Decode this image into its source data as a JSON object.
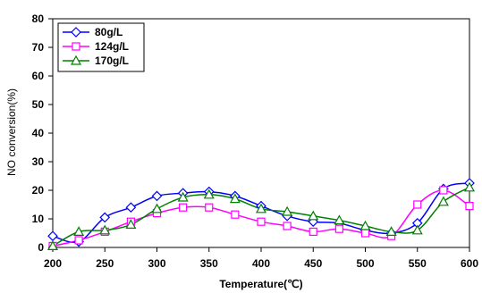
{
  "chart_data": {
    "type": "line",
    "title": "",
    "xlabel": "Temperature(℃)",
    "ylabel": "NO conversion(%)",
    "xlim": [
      200,
      600
    ],
    "ylim": [
      0,
      80
    ],
    "xticks": [
      200,
      250,
      300,
      350,
      400,
      450,
      500,
      550,
      600
    ],
    "yticks": [
      0,
      10,
      20,
      30,
      40,
      50,
      60,
      70,
      80
    ],
    "grid": false,
    "smooth": true,
    "legend_position": "top-left",
    "series": [
      {
        "name": "80g/L",
        "color": "#0000ff",
        "marker": "diamond",
        "points": [
          [
            200,
            4
          ],
          [
            225,
            2
          ],
          [
            250,
            10.5
          ],
          [
            275,
            14
          ],
          [
            300,
            18
          ],
          [
            325,
            19
          ],
          [
            350,
            19.5
          ],
          [
            375,
            18
          ],
          [
            400,
            14.5
          ],
          [
            425,
            11
          ],
          [
            450,
            9
          ],
          [
            475,
            8.5
          ],
          [
            500,
            6
          ],
          [
            525,
            5
          ],
          [
            550,
            8.5
          ],
          [
            575,
            20.5
          ],
          [
            600,
            22.5
          ]
        ]
      },
      {
        "name": "124g/L",
        "color": "#ff00ff",
        "marker": "square",
        "points": [
          [
            200,
            0.5
          ],
          [
            225,
            2.5
          ],
          [
            250,
            5.5
          ],
          [
            275,
            9
          ],
          [
            300,
            12
          ],
          [
            325,
            14
          ],
          [
            350,
            14
          ],
          [
            375,
            11.5
          ],
          [
            400,
            9
          ],
          [
            425,
            7.5
          ],
          [
            450,
            5.5
          ],
          [
            475,
            6.5
          ],
          [
            500,
            5
          ],
          [
            525,
            4
          ],
          [
            550,
            15
          ],
          [
            575,
            20
          ],
          [
            600,
            14.5
          ]
        ]
      },
      {
        "name": "170g/L",
        "color": "#008000",
        "marker": "triangle",
        "points": [
          [
            200,
            0.5
          ],
          [
            225,
            5.5
          ],
          [
            250,
            6
          ],
          [
            275,
            8
          ],
          [
            300,
            13.5
          ],
          [
            325,
            17.5
          ],
          [
            350,
            18.5
          ],
          [
            375,
            17
          ],
          [
            400,
            13.5
          ],
          [
            425,
            12.5
          ],
          [
            450,
            11
          ],
          [
            475,
            9.5
          ],
          [
            500,
            7.5
          ],
          [
            525,
            5.5
          ],
          [
            550,
            6
          ],
          [
            575,
            16
          ],
          [
            600,
            21
          ]
        ]
      }
    ]
  }
}
